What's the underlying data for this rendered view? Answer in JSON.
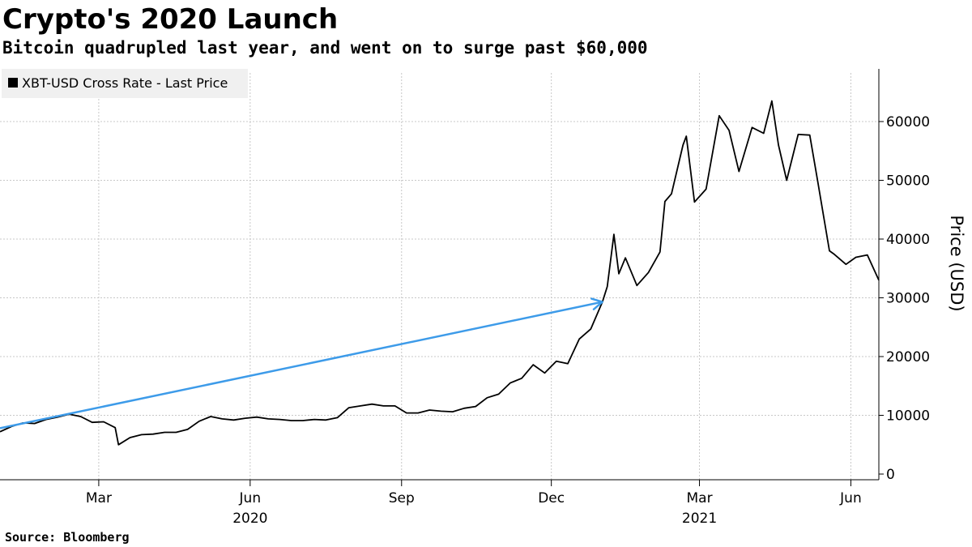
{
  "title": "Crypto's 2020 Launch",
  "subtitle": "Bitcoin quadrupled last year, and went on to surge past $60,000",
  "source": "Source: Bloomberg",
  "chart_data": {
    "type": "line",
    "title": "Crypto's 2020 Launch",
    "subtitle": "Bitcoin quadrupled last year, and went on to surge past $60,000",
    "xlabel": "",
    "ylabel": "Price (USD)",
    "ylim": [
      0,
      68000
    ],
    "xlim": [
      "2020-01-01",
      "2021-06-18"
    ],
    "y_ticks": [
      0,
      10000,
      20000,
      30000,
      40000,
      50000,
      60000
    ],
    "y_axis_side": "right",
    "x_ticks": [
      {
        "date": "2020-03-01",
        "label": "Mar"
      },
      {
        "date": "2020-06-01",
        "label": "Jun"
      },
      {
        "date": "2020-09-01",
        "label": "Sep"
      },
      {
        "date": "2020-12-01",
        "label": "Dec"
      },
      {
        "date": "2021-03-01",
        "label": "Mar"
      },
      {
        "date": "2021-06-01",
        "label": "Jun"
      }
    ],
    "year_labels": [
      {
        "date": "2020-06-01",
        "label": "2020"
      },
      {
        "date": "2021-03-01",
        "label": "2021"
      }
    ],
    "grid": true,
    "legend_position": "top-left",
    "colors": {
      "series": "#000000",
      "arrow": "#3d9be9",
      "grid": "#c8c8c8",
      "legend_bg": "#f0f0f0"
    },
    "series": [
      {
        "name": "XBT-USD Cross Rate - Last Price",
        "x": [
          "2020-01-01",
          "2020-01-08",
          "2020-01-15",
          "2020-01-22",
          "2020-01-29",
          "2020-02-05",
          "2020-02-12",
          "2020-02-19",
          "2020-02-26",
          "2020-03-04",
          "2020-03-11",
          "2020-03-13",
          "2020-03-20",
          "2020-03-27",
          "2020-04-03",
          "2020-04-10",
          "2020-04-17",
          "2020-04-24",
          "2020-05-01",
          "2020-05-08",
          "2020-05-15",
          "2020-05-22",
          "2020-05-29",
          "2020-06-05",
          "2020-06-12",
          "2020-06-19",
          "2020-06-26",
          "2020-07-03",
          "2020-07-10",
          "2020-07-17",
          "2020-07-24",
          "2020-07-31",
          "2020-08-07",
          "2020-08-14",
          "2020-08-21",
          "2020-08-28",
          "2020-09-04",
          "2020-09-11",
          "2020-09-18",
          "2020-09-25",
          "2020-10-02",
          "2020-10-09",
          "2020-10-16",
          "2020-10-23",
          "2020-10-30",
          "2020-11-06",
          "2020-11-13",
          "2020-11-20",
          "2020-11-27",
          "2020-12-04",
          "2020-12-11",
          "2020-12-18",
          "2020-12-25",
          "2021-01-01",
          "2021-01-04",
          "2021-01-08",
          "2021-01-11",
          "2021-01-15",
          "2021-01-22",
          "2021-01-29",
          "2021-02-05",
          "2021-02-08",
          "2021-02-12",
          "2021-02-19",
          "2021-02-21",
          "2021-02-26",
          "2021-03-05",
          "2021-03-13",
          "2021-03-19",
          "2021-03-25",
          "2021-04-02",
          "2021-04-09",
          "2021-04-14",
          "2021-04-18",
          "2021-04-23",
          "2021-04-30",
          "2021-05-07",
          "2021-05-12",
          "2021-05-19",
          "2021-05-22",
          "2021-05-29",
          "2021-06-04",
          "2021-06-11",
          "2021-06-18"
        ],
        "values": [
          7200,
          8100,
          8700,
          8600,
          9300,
          9700,
          10200,
          9800,
          8800,
          8900,
          7900,
          5000,
          6200,
          6700,
          6800,
          7100,
          7100,
          7600,
          9000,
          9800,
          9400,
          9200,
          9500,
          9700,
          9400,
          9300,
          9100,
          9100,
          9300,
          9200,
          9600,
          11300,
          11600,
          11900,
          11600,
          11600,
          10400,
          10400,
          10900,
          10700,
          10600,
          11200,
          11500,
          13000,
          13600,
          15500,
          16300,
          18600,
          17200,
          19200,
          18800,
          23000,
          24700,
          29300,
          31900,
          40800,
          34100,
          36800,
          32100,
          34300,
          37800,
          46400,
          47700,
          56000,
          57500,
          46300,
          48500,
          61000,
          58500,
          51500,
          59000,
          58000,
          63500,
          56000,
          50000,
          57800,
          57700,
          49600,
          38000,
          37400,
          35700,
          36900,
          37300,
          33000
        ]
      }
    ],
    "annotations": [
      {
        "type": "arrow",
        "from": {
          "x": "2020-01-01",
          "y": 7800
        },
        "to": {
          "x": "2021-01-01",
          "y": 29300
        }
      }
    ]
  }
}
